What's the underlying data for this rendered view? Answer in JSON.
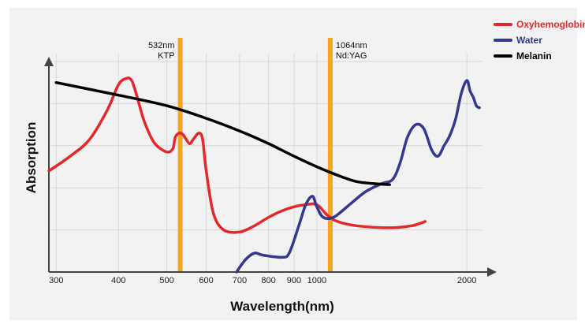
{
  "chart_data": {
    "type": "line",
    "title": "",
    "xlabel": "Wavelength(nm)",
    "ylabel": "Absorption",
    "x_ticks": [
      {
        "value": 300,
        "label": "300"
      },
      {
        "value": 400,
        "label": "400"
      },
      {
        "value": 500,
        "label": "500"
      },
      {
        "value": 600,
        "label": "600"
      },
      {
        "value": 700,
        "label": "700"
      },
      {
        "value": 800,
        "label": "800"
      },
      {
        "value": 900,
        "label": "900"
      },
      {
        "value": 1000,
        "label": "1000"
      },
      {
        "value": 2000,
        "label": "2000"
      }
    ],
    "x_scale": "log",
    "xlim": [
      290,
      2150
    ],
    "ylim": [
      0,
      100
    ],
    "grid": true,
    "legend_position": "top-right",
    "laser_bands": [
      {
        "wavelength": 532,
        "label_line1": "532nm",
        "label_line2": "KTP",
        "color": "#f5a623"
      },
      {
        "wavelength": 1064,
        "label_line1": "1064nm",
        "label_line2": "Nd:YAG",
        "color": "#f5a623"
      }
    ],
    "series": [
      {
        "name": "Oxyhemoglobin",
        "color": "#e3272b",
        "points": [
          [
            290,
            48
          ],
          [
            320,
            55
          ],
          [
            350,
            63
          ],
          [
            380,
            77
          ],
          [
            400,
            89
          ],
          [
            415,
            92
          ],
          [
            425,
            91
          ],
          [
            435,
            84
          ],
          [
            450,
            72
          ],
          [
            470,
            62
          ],
          [
            490,
            58
          ],
          [
            505,
            57
          ],
          [
            515,
            59
          ],
          [
            520,
            64
          ],
          [
            530,
            66
          ],
          [
            540,
            65
          ],
          [
            555,
            61
          ],
          [
            565,
            63
          ],
          [
            580,
            66
          ],
          [
            590,
            63
          ],
          [
            600,
            48
          ],
          [
            620,
            28
          ],
          [
            650,
            20
          ],
          [
            700,
            19
          ],
          [
            750,
            22
          ],
          [
            800,
            26
          ],
          [
            850,
            29
          ],
          [
            900,
            31
          ],
          [
            950,
            32
          ],
          [
            1000,
            32
          ],
          [
            1050,
            27
          ],
          [
            1100,
            24
          ],
          [
            1200,
            22
          ],
          [
            1400,
            21
          ],
          [
            1550,
            22
          ],
          [
            1650,
            24
          ]
        ]
      },
      {
        "name": "Water",
        "color": "#36388f",
        "points": [
          [
            690,
            0
          ],
          [
            720,
            6
          ],
          [
            750,
            9
          ],
          [
            780,
            8
          ],
          [
            850,
            7
          ],
          [
            880,
            9
          ],
          [
            920,
            22
          ],
          [
            950,
            32
          ],
          [
            980,
            36
          ],
          [
            1000,
            31
          ],
          [
            1030,
            26
          ],
          [
            1080,
            26
          ],
          [
            1150,
            31
          ],
          [
            1250,
            38
          ],
          [
            1350,
            42
          ],
          [
            1420,
            44
          ],
          [
            1470,
            52
          ],
          [
            1520,
            64
          ],
          [
            1580,
            70
          ],
          [
            1640,
            68
          ],
          [
            1700,
            58
          ],
          [
            1750,
            55
          ],
          [
            1800,
            60
          ],
          [
            1850,
            65
          ],
          [
            1900,
            73
          ],
          [
            1950,
            85
          ],
          [
            2000,
            91
          ],
          [
            2030,
            86
          ],
          [
            2060,
            83
          ],
          [
            2090,
            79
          ],
          [
            2120,
            78
          ]
        ]
      },
      {
        "name": "Melanin",
        "color": "#000000",
        "points": [
          [
            300,
            90
          ],
          [
            400,
            84
          ],
          [
            500,
            79
          ],
          [
            600,
            73
          ],
          [
            700,
            67
          ],
          [
            800,
            61
          ],
          [
            900,
            55
          ],
          [
            1000,
            50
          ],
          [
            1100,
            46
          ],
          [
            1200,
            43
          ],
          [
            1300,
            42
          ],
          [
            1400,
            41.5
          ]
        ]
      }
    ]
  }
}
